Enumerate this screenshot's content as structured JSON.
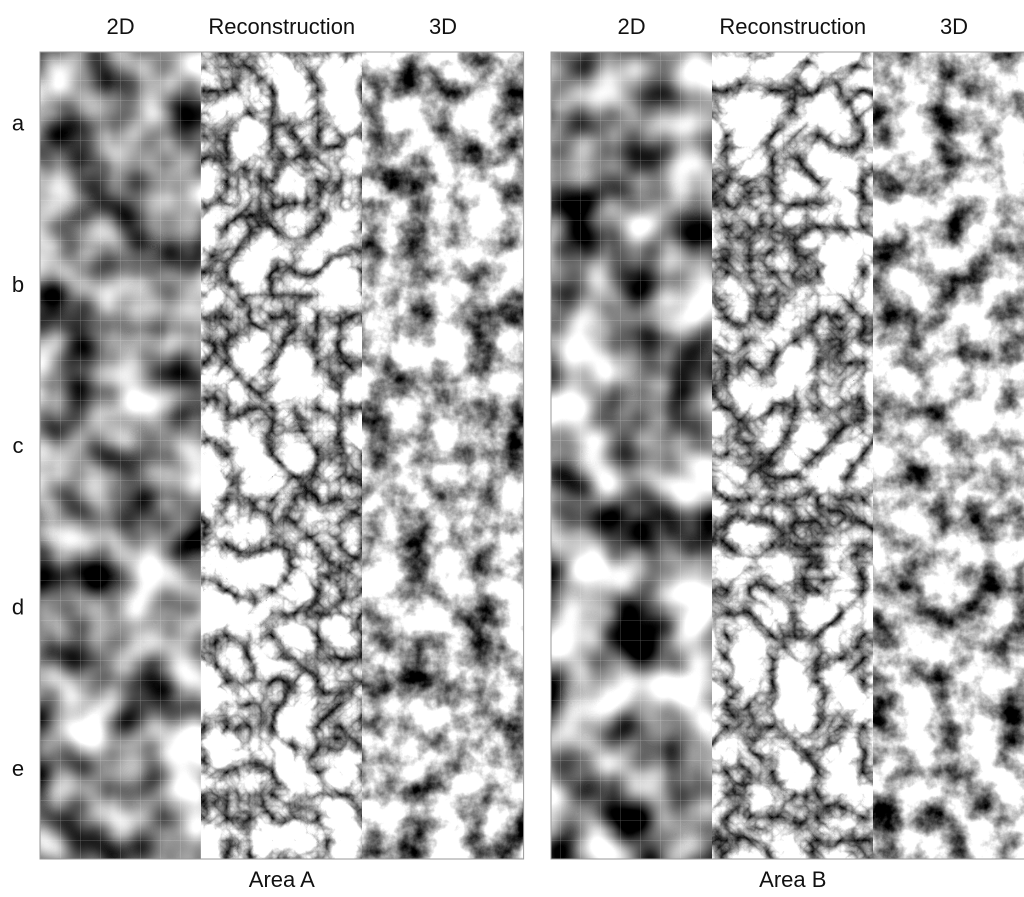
{
  "row_labels": [
    "a",
    "b",
    "c",
    "d",
    "e"
  ],
  "panels": [
    {
      "columns": [
        "2D",
        "Reconstruction",
        "3D"
      ],
      "caption": "Area A"
    },
    {
      "columns": [
        "2D",
        "Reconstruction",
        "3D"
      ],
      "caption": "Area B"
    }
  ]
}
